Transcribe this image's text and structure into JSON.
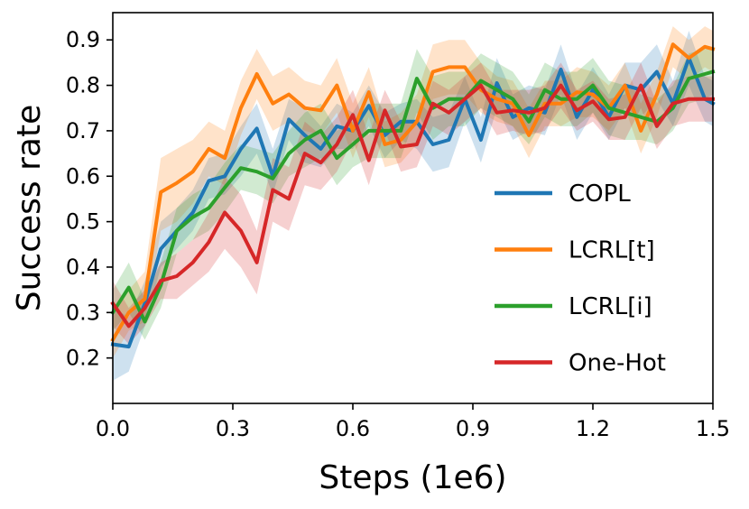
{
  "chart_data": {
    "type": "line",
    "xlabel": "Steps (1e6)",
    "ylabel": "Success rate",
    "xlim": [
      0.0,
      1.5
    ],
    "ylim": [
      0.1,
      0.96
    ],
    "xticks": [
      0.0,
      0.3,
      0.6,
      0.9,
      1.2,
      1.5
    ],
    "xtick_labels": [
      "0.0",
      "0.3",
      "0.6",
      "0.9",
      "1.2",
      "1.5"
    ],
    "yticks": [
      0.2,
      0.3,
      0.4,
      0.5,
      0.6,
      0.7,
      0.8,
      0.9
    ],
    "ytick_labels": [
      "0.2",
      "0.3",
      "0.4",
      "0.5",
      "0.6",
      "0.7",
      "0.8",
      "0.9"
    ],
    "grid": false,
    "legend_position": "lower-right",
    "x": [
      0.0,
      0.04,
      0.08,
      0.12,
      0.16,
      0.2,
      0.24,
      0.28,
      0.32,
      0.36,
      0.4,
      0.44,
      0.48,
      0.52,
      0.56,
      0.6,
      0.64,
      0.68,
      0.72,
      0.76,
      0.8,
      0.84,
      0.88,
      0.92,
      0.96,
      1.0,
      1.04,
      1.08,
      1.12,
      1.16,
      1.2,
      1.24,
      1.28,
      1.32,
      1.36,
      1.4,
      1.44,
      1.48,
      1.5
    ],
    "series": [
      {
        "name": "COPL",
        "color": "#1f77b4",
        "values": [
          0.23,
          0.225,
          0.32,
          0.44,
          0.48,
          0.52,
          0.59,
          0.6,
          0.66,
          0.705,
          0.6,
          0.725,
          0.69,
          0.66,
          0.71,
          0.7,
          0.755,
          0.69,
          0.72,
          0.72,
          0.67,
          0.68,
          0.77,
          0.68,
          0.805,
          0.73,
          0.75,
          0.74,
          0.835,
          0.73,
          0.79,
          0.73,
          0.8,
          0.79,
          0.83,
          0.76,
          0.86,
          0.77,
          0.76
        ],
        "lower": [
          0.15,
          0.17,
          0.27,
          0.4,
          0.44,
          0.48,
          0.55,
          0.56,
          0.6,
          0.65,
          0.56,
          0.68,
          0.63,
          0.62,
          0.66,
          0.66,
          0.71,
          0.64,
          0.68,
          0.66,
          0.61,
          0.62,
          0.72,
          0.63,
          0.75,
          0.68,
          0.7,
          0.69,
          0.78,
          0.68,
          0.74,
          0.68,
          0.75,
          0.73,
          0.77,
          0.71,
          0.8,
          0.72,
          0.71
        ],
        "upper": [
          0.31,
          0.29,
          0.37,
          0.5,
          0.53,
          0.57,
          0.64,
          0.65,
          0.71,
          0.76,
          0.66,
          0.77,
          0.75,
          0.71,
          0.76,
          0.74,
          0.8,
          0.74,
          0.76,
          0.77,
          0.73,
          0.74,
          0.82,
          0.73,
          0.86,
          0.78,
          0.8,
          0.79,
          0.89,
          0.78,
          0.84,
          0.78,
          0.85,
          0.85,
          0.89,
          0.81,
          0.92,
          0.82,
          0.81
        ]
      },
      {
        "name": "LCRL[t]",
        "color": "#ff7f0e",
        "values": [
          0.24,
          0.3,
          0.33,
          0.565,
          0.585,
          0.61,
          0.66,
          0.64,
          0.75,
          0.825,
          0.76,
          0.78,
          0.75,
          0.745,
          0.8,
          0.7,
          0.785,
          0.67,
          0.68,
          0.72,
          0.83,
          0.84,
          0.84,
          0.79,
          0.77,
          0.76,
          0.69,
          0.76,
          0.76,
          0.785,
          0.78,
          0.75,
          0.8,
          0.7,
          0.78,
          0.89,
          0.86,
          0.885,
          0.88
        ],
        "lower": [
          0.2,
          0.26,
          0.28,
          0.48,
          0.5,
          0.54,
          0.6,
          0.58,
          0.69,
          0.77,
          0.7,
          0.72,
          0.7,
          0.69,
          0.74,
          0.64,
          0.73,
          0.62,
          0.63,
          0.67,
          0.77,
          0.78,
          0.78,
          0.74,
          0.72,
          0.71,
          0.64,
          0.71,
          0.71,
          0.73,
          0.73,
          0.7,
          0.75,
          0.65,
          0.73,
          0.84,
          0.81,
          0.84,
          0.83
        ],
        "upper": [
          0.29,
          0.35,
          0.39,
          0.64,
          0.66,
          0.68,
          0.72,
          0.7,
          0.81,
          0.88,
          0.82,
          0.84,
          0.81,
          0.8,
          0.86,
          0.76,
          0.84,
          0.72,
          0.74,
          0.78,
          0.89,
          0.9,
          0.9,
          0.85,
          0.82,
          0.81,
          0.75,
          0.81,
          0.81,
          0.84,
          0.83,
          0.8,
          0.85,
          0.76,
          0.83,
          0.93,
          0.9,
          0.93,
          0.92
        ]
      },
      {
        "name": "LCRL[i]",
        "color": "#2ca02c",
        "values": [
          0.3,
          0.355,
          0.28,
          0.36,
          0.48,
          0.51,
          0.53,
          0.575,
          0.618,
          0.61,
          0.595,
          0.65,
          0.68,
          0.7,
          0.64,
          0.67,
          0.7,
          0.7,
          0.7,
          0.815,
          0.75,
          0.77,
          0.77,
          0.81,
          0.79,
          0.77,
          0.72,
          0.79,
          0.77,
          0.77,
          0.8,
          0.75,
          0.74,
          0.73,
          0.72,
          0.75,
          0.815,
          0.825,
          0.83
        ],
        "lower": [
          0.26,
          0.3,
          0.24,
          0.31,
          0.43,
          0.46,
          0.48,
          0.52,
          0.57,
          0.56,
          0.54,
          0.6,
          0.62,
          0.64,
          0.58,
          0.62,
          0.64,
          0.64,
          0.64,
          0.74,
          0.68,
          0.71,
          0.71,
          0.75,
          0.73,
          0.71,
          0.67,
          0.73,
          0.71,
          0.71,
          0.74,
          0.69,
          0.68,
          0.68,
          0.67,
          0.7,
          0.76,
          0.77,
          0.78
        ],
        "upper": [
          0.35,
          0.41,
          0.33,
          0.41,
          0.53,
          0.56,
          0.58,
          0.63,
          0.67,
          0.66,
          0.65,
          0.7,
          0.74,
          0.76,
          0.7,
          0.72,
          0.76,
          0.76,
          0.76,
          0.88,
          0.82,
          0.83,
          0.83,
          0.87,
          0.85,
          0.83,
          0.78,
          0.85,
          0.83,
          0.83,
          0.86,
          0.81,
          0.8,
          0.78,
          0.77,
          0.8,
          0.87,
          0.88,
          0.88
        ]
      },
      {
        "name": "One-Hot",
        "color": "#d62728",
        "values": [
          0.32,
          0.27,
          0.31,
          0.37,
          0.38,
          0.41,
          0.455,
          0.52,
          0.48,
          0.41,
          0.57,
          0.55,
          0.65,
          0.63,
          0.67,
          0.735,
          0.635,
          0.745,
          0.665,
          0.67,
          0.76,
          0.74,
          0.77,
          0.8,
          0.74,
          0.745,
          0.74,
          0.75,
          0.8,
          0.745,
          0.765,
          0.725,
          0.73,
          0.8,
          0.71,
          0.76,
          0.77,
          0.77,
          0.77
        ],
        "lower": [
          0.27,
          0.23,
          0.27,
          0.33,
          0.33,
          0.36,
          0.39,
          0.44,
          0.4,
          0.34,
          0.5,
          0.48,
          0.58,
          0.57,
          0.61,
          0.68,
          0.58,
          0.7,
          0.61,
          0.62,
          0.71,
          0.69,
          0.72,
          0.75,
          0.69,
          0.7,
          0.69,
          0.7,
          0.75,
          0.7,
          0.72,
          0.68,
          0.68,
          0.75,
          0.66,
          0.71,
          0.72,
          0.72,
          0.72
        ],
        "upper": [
          0.37,
          0.31,
          0.35,
          0.41,
          0.43,
          0.46,
          0.52,
          0.6,
          0.56,
          0.48,
          0.64,
          0.62,
          0.72,
          0.69,
          0.73,
          0.79,
          0.69,
          0.79,
          0.72,
          0.72,
          0.81,
          0.79,
          0.82,
          0.85,
          0.79,
          0.79,
          0.79,
          0.8,
          0.85,
          0.79,
          0.81,
          0.77,
          0.78,
          0.85,
          0.76,
          0.81,
          0.82,
          0.82,
          0.82
        ]
      }
    ]
  }
}
